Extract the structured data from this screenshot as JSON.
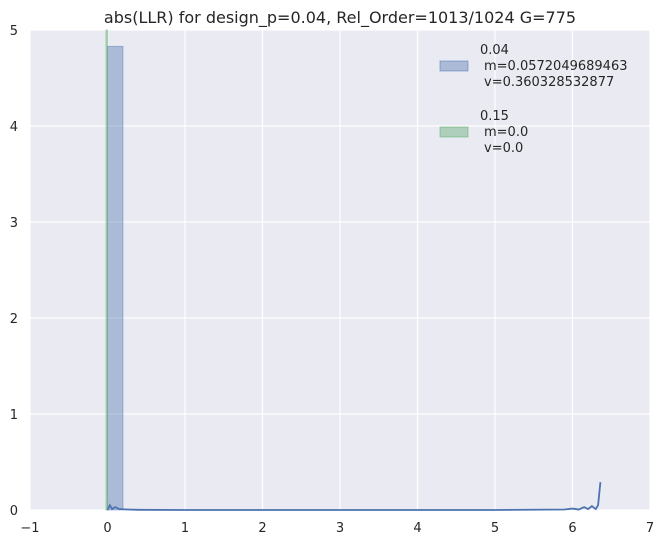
{
  "chart_data": {
    "type": "histogram",
    "title": "abs(LLR) for design_p=0.04, Rel_Order=1013/1024 G=775",
    "xlabel": "",
    "ylabel": "",
    "xlim": [
      -1,
      7
    ],
    "ylim": [
      0,
      5
    ],
    "x_ticks": [
      -1,
      0,
      1,
      2,
      3,
      4,
      5,
      6,
      7
    ],
    "x_tick_labels": [
      "−1",
      "0",
      "1",
      "2",
      "3",
      "4",
      "5",
      "6",
      "7"
    ],
    "y_ticks": [
      0,
      1,
      2,
      3,
      4,
      5
    ],
    "y_tick_labels": [
      "0",
      "1",
      "2",
      "3",
      "4",
      "5"
    ],
    "grid": true,
    "legend_position": "top-right",
    "colors": {
      "background": "#eaeaf2",
      "grid": "#ffffff",
      "series_1": "#4c72b0",
      "series_2": "#55a868"
    },
    "series": [
      {
        "name": "0.04",
        "legend_lines": [
          "0.04",
          "m=0.0572049689463",
          "v=0.360328532877"
        ],
        "bins": [
          {
            "x0": 0.0,
            "x1": 0.2,
            "height": 4.83
          }
        ],
        "kde": [
          [
            0.0,
            0.0
          ],
          [
            0.03,
            0.05
          ],
          [
            0.06,
            0.01
          ],
          [
            0.1,
            0.03
          ],
          [
            0.15,
            0.01
          ],
          [
            0.25,
            0.005
          ],
          [
            0.4,
            0.002
          ],
          [
            1.0,
            0.0
          ],
          [
            3.0,
            0.0
          ],
          [
            5.0,
            0.0
          ],
          [
            5.9,
            0.005
          ],
          [
            6.0,
            0.015
          ],
          [
            6.08,
            0.005
          ],
          [
            6.15,
            0.03
          ],
          [
            6.2,
            0.01
          ],
          [
            6.25,
            0.04
          ],
          [
            6.3,
            0.01
          ],
          [
            6.33,
            0.05
          ],
          [
            6.36,
            0.29
          ]
        ]
      },
      {
        "name": "0.15",
        "legend_lines": [
          "0.15",
          "m=0.0",
          "v=0.0"
        ],
        "bins": [
          {
            "x0": -0.02,
            "x1": 0.0,
            "height": 5.0
          }
        ],
        "kde": []
      }
    ]
  }
}
